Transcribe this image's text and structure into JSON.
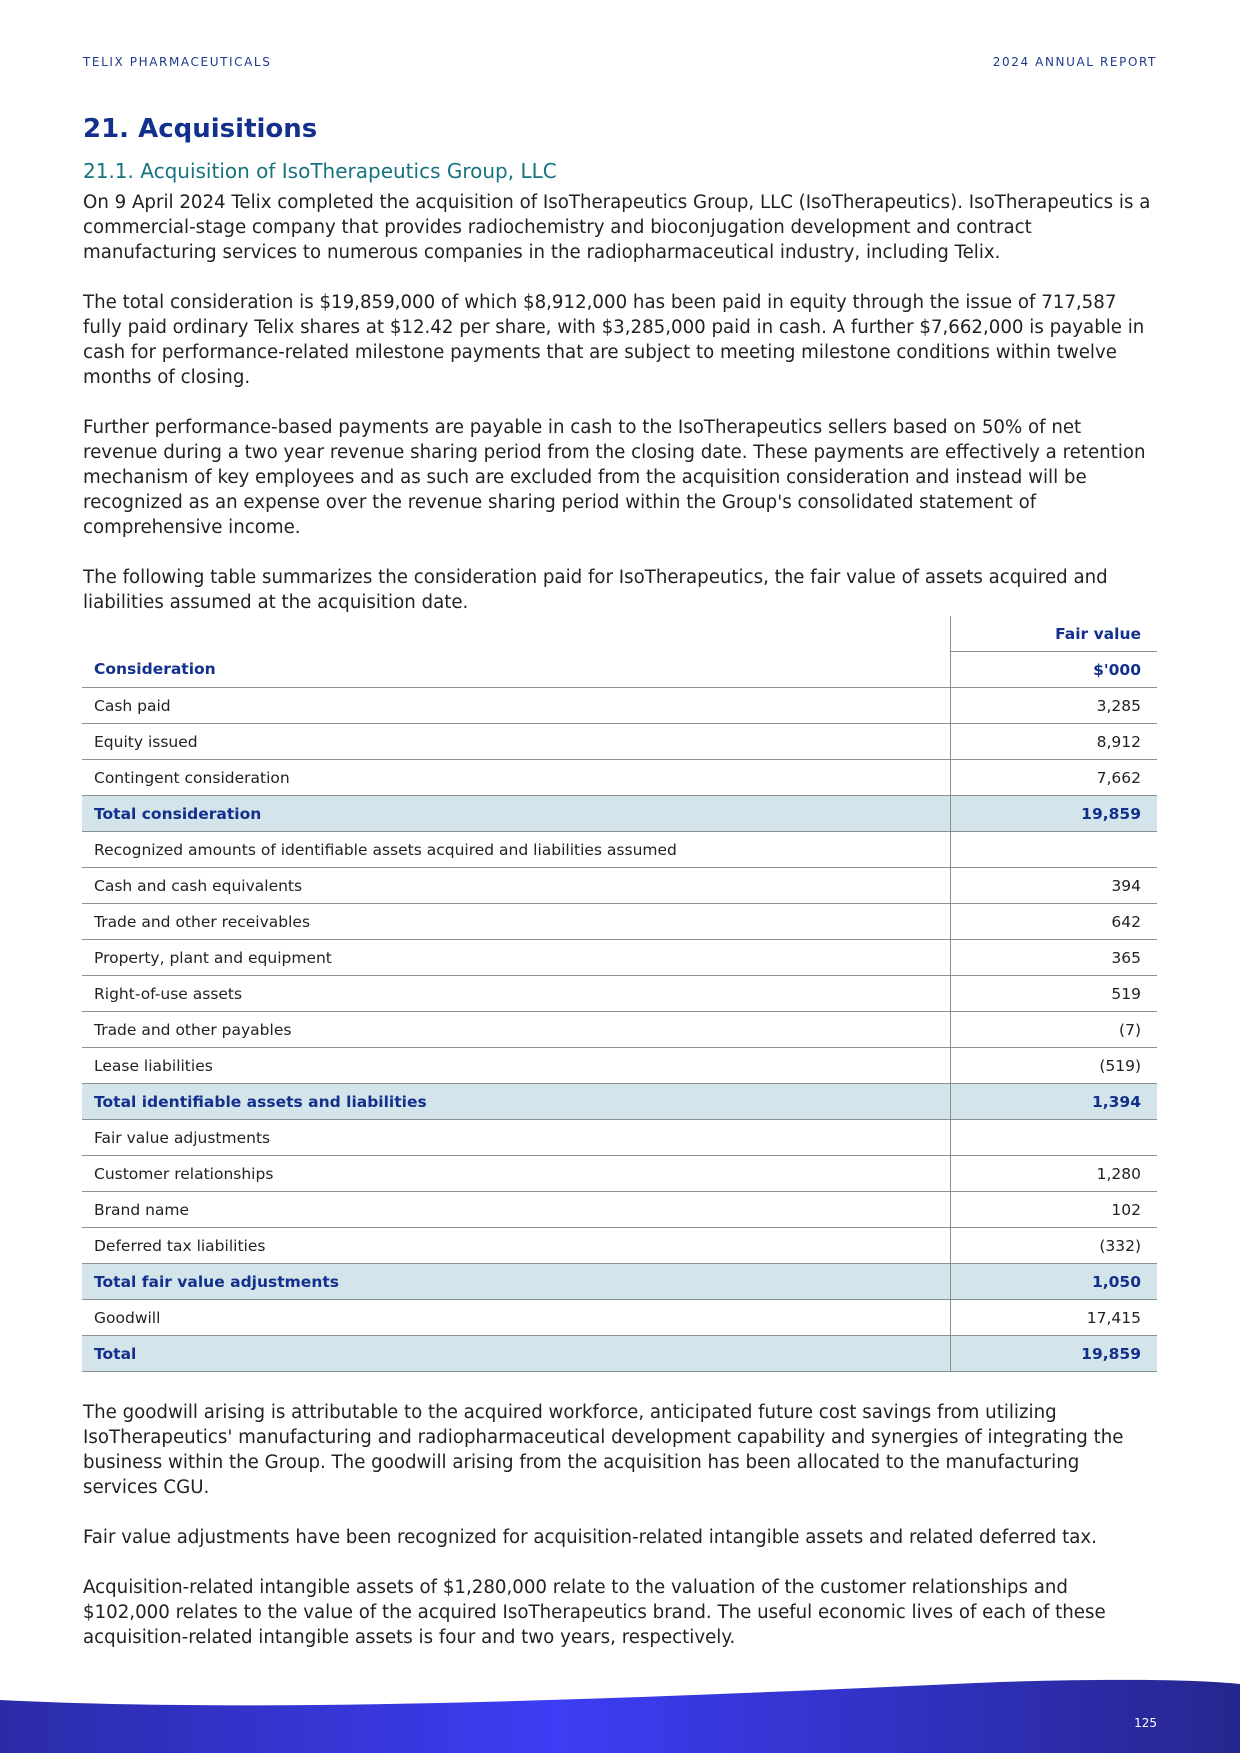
{
  "header": {
    "left": "TELIX PHARMACEUTICALS",
    "right": "2024 ANNUAL REPORT"
  },
  "section": {
    "title": "21. Acquisitions",
    "subtitle": "21.1. Acquisition of IsoTherapeutics Group, LLC"
  },
  "paragraphs_before": [
    "On 9 April 2024 Telix completed the acquisition of IsoTherapeutics Group, LLC (IsoTherapeutics). IsoTherapeutics is a commercial-stage company that provides radiochemistry and bioconjugation development and contract manufacturing services to numerous companies in the radiopharmaceutical industry, including Telix.",
    "The total consideration is $19,859,000 of which $8,912,000 has been paid in equity through the issue of 717,587 fully paid ordinary Telix shares at $12.42 per share, with $3,285,000 paid in cash. A further $7,662,000 is payable in cash for performance-related milestone payments that are subject to meeting milestone conditions within twelve months of closing.",
    "Further performance-based payments are payable in cash to the IsoTherapeutics sellers based on 50% of net revenue during a two year revenue sharing period from the closing date. These payments are effectively a retention mechanism of key employees and as such are excluded from the acquisition consideration and instead will be recognized as an expense over the revenue sharing period within the Group's consolidated statement of comprehensive income.",
    "The following table summarizes the consideration paid for IsoTherapeutics, the fair value of assets acquired and liabilities assumed at the acquisition date."
  ],
  "table": {
    "column_header": "Fair value",
    "row_header": "Consideration",
    "unit": "$'000",
    "rows": [
      {
        "label": "Cash paid",
        "value": "3,285"
      },
      {
        "label": "Equity issued",
        "value": "8,912"
      },
      {
        "label": "Contingent consideration",
        "value": "7,662"
      },
      {
        "label": "Total consideration",
        "value": "19,859",
        "highlight": true
      },
      {
        "label": "Recognized amounts of identifiable assets acquired and liabilities assumed"
      },
      {
        "label": "Cash and cash equivalents",
        "value": "394"
      },
      {
        "label": "Trade and other receivables",
        "value": "642"
      },
      {
        "label": "Property, plant and equipment",
        "value": "365"
      },
      {
        "label": "Right-of-use assets",
        "value": "519"
      },
      {
        "label": "Trade and other payables",
        "value": "(7)"
      },
      {
        "label": "Lease liabilities",
        "value": "(519)"
      },
      {
        "label": "Total identifiable assets and liabilities",
        "value": "1,394",
        "highlight": true
      },
      {
        "label": "Fair value adjustments"
      },
      {
        "label": "Customer relationships",
        "value": "1,280"
      },
      {
        "label": "Brand name",
        "value": "102"
      },
      {
        "label": "Deferred tax liabilities",
        "value": "(332)"
      },
      {
        "label": "Total fair value adjustments",
        "value": "1,050",
        "highlight": true
      },
      {
        "label": "Goodwill",
        "value": "17,415"
      },
      {
        "label": "Total",
        "value": "19,859",
        "highlight": true
      }
    ]
  },
  "paragraphs_after": [
    "The goodwill arising is attributable to the acquired workforce, anticipated future cost savings from utilizing IsoTherapeutics' manufacturing and radiopharmaceutical development capability and synergies of integrating the business within the Group. The goodwill arising from the acquisition has been allocated to the manufacturing services CGU.",
    "Fair value adjustments have been recognized for acquisition-related intangible assets and related deferred tax.",
    "Acquisition-related intangible assets of $1,280,000 relate to the valuation of the customer relationships and $102,000 relates to the value of the acquired IsoTherapeutics brand. The useful economic lives of each of these acquisition-related intangible assets is four and two years, respectively."
  ],
  "footer": {
    "page_number": "125"
  }
}
